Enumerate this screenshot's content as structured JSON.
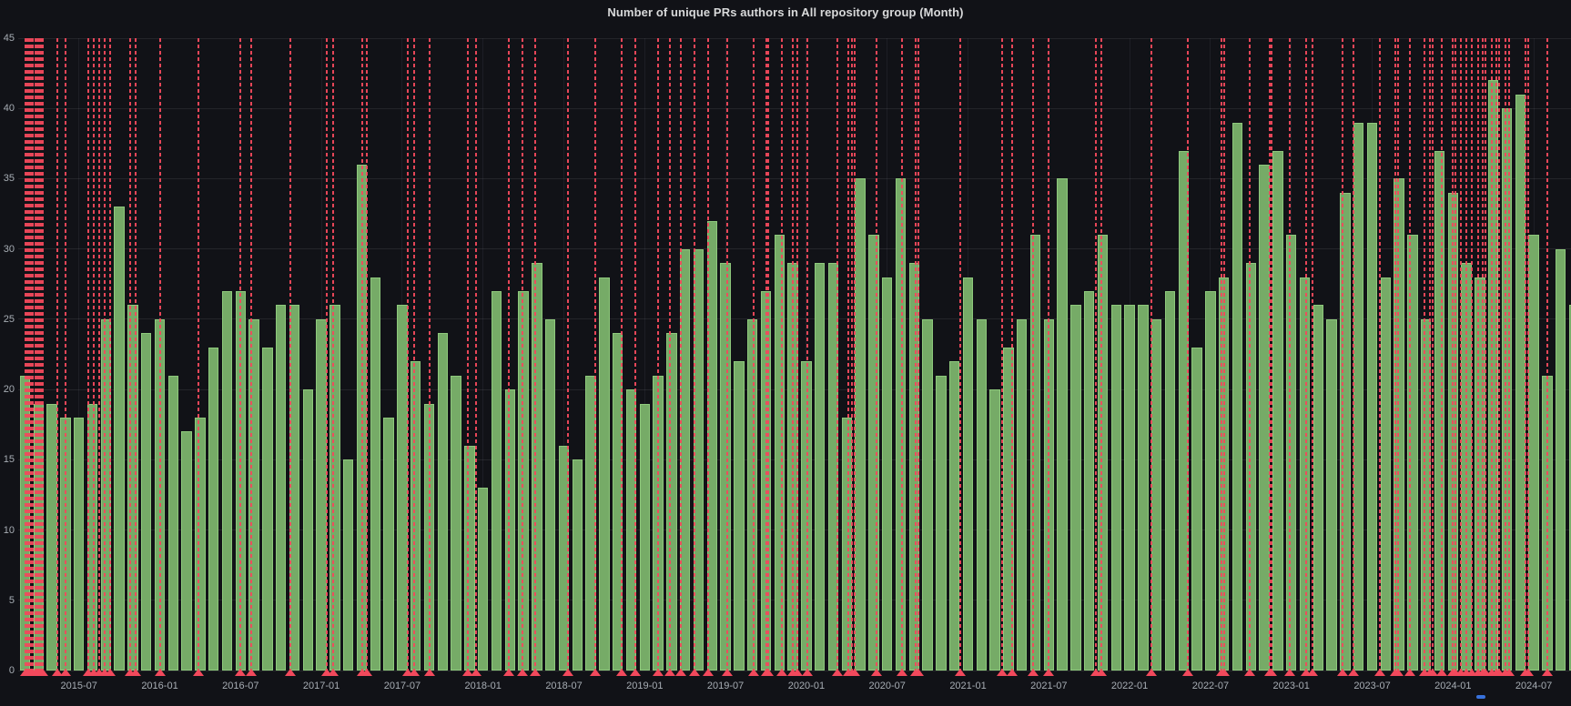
{
  "panel": {
    "title": "Number of unique PRs authors in All repository group (Month)"
  },
  "colors": {
    "background": "#111217",
    "bar_fill": "#76ab67",
    "bar_border": "#8ec97c",
    "annotation_red": "#f2495c",
    "grid": "rgba(204,204,220,0.08)",
    "axis_text": "#a7adb4",
    "title_text": "#d8d9da",
    "blue_marker": "#3871dc"
  },
  "chart_data": {
    "type": "bar",
    "title": "Number of unique PRs authors in All repository group (Month)",
    "xlabel": "",
    "ylabel": "",
    "ylim": [
      0,
      45
    ],
    "grid": true,
    "legend_position": "none",
    "x_start_month": "2015-03",
    "x_tick_first_index": 4,
    "x_tick_step_months": 6,
    "x_tick_labels": [
      "2015-07",
      "2016-01",
      "2016-07",
      "2017-01",
      "2017-07",
      "2018-01",
      "2018-07",
      "2019-01",
      "2019-07",
      "2020-01",
      "2020-07",
      "2021-01",
      "2021-07",
      "2022-01",
      "2022-07",
      "2023-01",
      "2023-07",
      "2024-01",
      "2024-07"
    ],
    "y_ticks": [
      0,
      5,
      10,
      15,
      20,
      25,
      30,
      35,
      40,
      45
    ],
    "series": [
      {
        "name": "Number of unique PRs authors",
        "color": "#76ab67",
        "values": [
          21,
          19,
          19,
          18,
          18,
          19,
          25,
          33,
          26,
          24,
          25,
          21,
          17,
          18,
          23,
          27,
          27,
          25,
          23,
          26,
          26,
          20,
          25,
          26,
          15,
          36,
          28,
          18,
          26,
          22,
          19,
          24,
          21,
          16,
          13,
          27,
          20,
          27,
          29,
          25,
          16,
          15,
          21,
          28,
          24,
          20,
          19,
          21,
          24,
          30,
          30,
          32,
          29,
          22,
          25,
          27,
          31,
          29,
          22,
          29,
          29,
          18,
          35,
          31,
          28,
          35,
          29,
          25,
          21,
          22,
          28,
          25,
          20,
          23,
          25,
          31,
          25,
          35,
          26,
          27,
          31,
          26,
          26,
          26,
          25,
          27,
          37,
          23,
          27,
          28,
          39,
          29,
          36,
          37,
          31,
          28,
          26,
          25,
          34,
          39,
          39,
          28,
          35,
          31,
          25,
          37,
          34,
          29,
          28,
          42,
          40,
          41,
          31,
          21,
          30,
          26
        ]
      }
    ],
    "annotations": {
      "style": "vertical-dashed-line-with-triangle-marker",
      "color": "#f2495c",
      "positions_month_index": [
        0,
        0.15,
        0.3,
        0.45,
        0.6,
        0.75,
        0.9,
        1.05,
        1.2,
        1.35,
        2.4,
        3.0,
        4.7,
        5.1,
        5.5,
        5.9,
        6.3,
        7.8,
        8.2,
        10.0,
        12.9,
        16.0,
        16.8,
        19.7,
        22.4,
        22.9,
        25.0,
        25.4,
        28.4,
        28.9,
        30.0,
        32.9,
        33.5,
        35.9,
        36.9,
        37.9,
        40.3,
        42.3,
        44.3,
        45.3,
        47.0,
        47.9,
        48.7,
        49.7,
        50.7,
        52.1,
        54.1,
        55.0,
        55.2,
        56.2,
        57.0,
        57.3,
        58.1,
        60.3,
        61.1,
        61.4,
        61.6,
        63.2,
        65.1,
        66.1,
        66.3,
        69.4,
        72.5,
        73.3,
        74.8,
        76.0,
        79.5,
        79.9,
        83.6,
        86.3,
        88.8,
        89.0,
        90.9,
        92.4,
        92.5,
        93.9,
        95.1,
        95.6,
        97.8,
        98.6,
        100.6,
        101.7,
        101.9,
        102.8,
        103.9,
        104.3,
        104.5,
        105.2,
        106.0,
        106.2,
        106.6,
        107.0,
        107.4,
        107.9,
        108.2,
        108.4,
        108.9,
        109.2,
        109.4,
        109.9,
        110.2,
        111.4,
        111.6,
        113.0
      ]
    }
  }
}
